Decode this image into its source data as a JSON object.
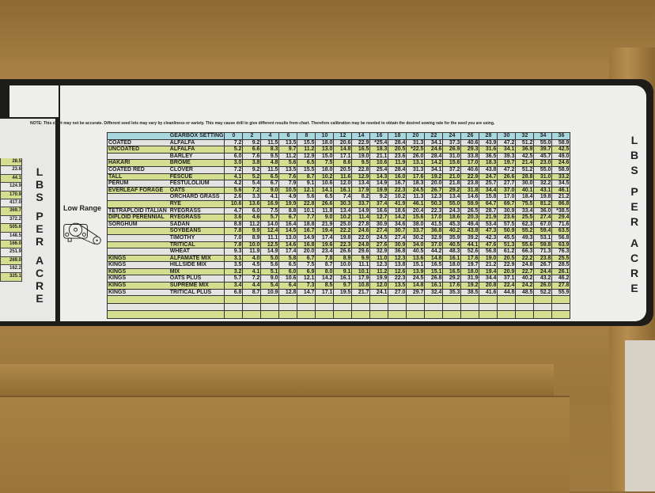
{
  "note": "NOTE: This chart may not be accurate.  Different seed lots may vary by cleanliness or variety.  This may cause drill to give different results from chart. Therefore calibration may be needed to obtain the desired sowing rate for the seed you are using.",
  "units_label": [
    "L",
    "B",
    "S",
    "P",
    "E",
    "R",
    "A",
    "C",
    "R",
    "E"
  ],
  "range_label": "Low Range",
  "icon": "gearbox-belt-diagram",
  "colors": {
    "header": "#a9d7df",
    "stripe": "#d5dd8e",
    "row": "#e3e3e1",
    "housing": "#a57f44"
  },
  "left_chart_values": [
    "28.5",
    "23.6",
    "44.1",
    "124.9",
    "170.9",
    "417.0",
    "369.7",
    "372.2",
    "505.6",
    "148.5",
    "166.0",
    "251.9",
    "269.0",
    "162.2",
    "325.1"
  ],
  "table": {
    "header": "GEARBOX SETTING",
    "settings": [
      "0",
      "2",
      "4",
      "6",
      "8",
      "10",
      "12",
      "14",
      "16",
      "18",
      "20",
      "22",
      "24",
      "26",
      "28",
      "30",
      "32",
      "34",
      "36"
    ],
    "rows": [
      {
        "brand": "COATED",
        "seed": "ALFALFA",
        "values": [
          "7.2",
          "9.2",
          "11.5",
          "13.5",
          "15.5",
          "18.0",
          "20.6",
          "22.9",
          "*25.4",
          "28.4",
          "31.3",
          "34.1",
          "37.3",
          "40.6",
          "43.9",
          "47.2",
          "51.2",
          "55.0",
          "58.9"
        ]
      },
      {
        "brand": "UNCOATED",
        "seed": "ALFALFA",
        "values": [
          "5.2",
          "6.6",
          "8.3",
          "9.7",
          "11.2",
          "13.0",
          "14.8",
          "16.5",
          "18.3",
          "20.5",
          "*22.5",
          "24.6",
          "26.9",
          "29.3",
          "31.6",
          "34.1",
          "36.9",
          "39.7",
          "42.5"
        ]
      },
      {
        "brand": "",
        "seed": "BARLEY",
        "values": [
          "6.0",
          "7.6",
          "9.5",
          "11.2",
          "12.9",
          "15.0",
          "17.1",
          "19.0",
          "21.1",
          "23.6",
          "26.0",
          "28.4",
          "31.0",
          "33.8",
          "36.5",
          "39.3",
          "42.5",
          "45.7",
          "49.0"
        ]
      },
      {
        "brand": "HAKARI",
        "seed": "BROME",
        "values": [
          "3.0",
          "3.8",
          "4.8",
          "5.6",
          "6.5",
          "7.5",
          "8.6",
          "9.5",
          "10.6",
          "11.9",
          "13.1",
          "14.2",
          "15.6",
          "17.0",
          "18.3",
          "19.7",
          "21.4",
          "23.0",
          "24.6"
        ]
      },
      {
        "brand": "COATED RED",
        "seed": "CLOVER",
        "values": [
          "7.2",
          "9.2",
          "11.5",
          "13.5",
          "15.5",
          "18.0",
          "20.5",
          "22.8",
          "25.4",
          "28.4",
          "31.3",
          "34.1",
          "37.2",
          "40.6",
          "43.8",
          "47.2",
          "51.2",
          "55.0",
          "58.9"
        ]
      },
      {
        "brand": "TALL",
        "seed": "FESCUE",
        "values": [
          "4.1",
          "5.2",
          "6.5",
          "7.6",
          "8.7",
          "10.2",
          "11.6",
          "12.9",
          "14.3",
          "16.0",
          "17.6",
          "19.2",
          "21.0",
          "22.9",
          "24.7",
          "26.6",
          "28.8",
          "31.0",
          "33.2"
        ]
      },
      {
        "brand": "PERUM",
        "seed": "FESTULOLIUM",
        "values": [
          "4.2",
          "5.4",
          "6.7",
          "7.9",
          "9.1",
          "10.6",
          "12.0",
          "13.4",
          "14.9",
          "16.7",
          "18.3",
          "20.0",
          "21.8",
          "23.8",
          "25.7",
          "27.7",
          "30.0",
          "32.2",
          "34.5"
        ]
      },
      {
        "brand": "EVERLEAF FORAGE",
        "seed": "OATS",
        "values": [
          "5.6",
          "7.2",
          "9.0",
          "10.5",
          "12.1",
          "14.1",
          "16.1",
          "17.9",
          "19.9",
          "22.3",
          "24.5",
          "26.7",
          "29.2",
          "31.8",
          "34.4",
          "37.0",
          "40.1",
          "43.1",
          "46.1"
        ]
      },
      {
        "brand": "",
        "seed": "ORCHARD GRASS",
        "values": [
          "2.6",
          "3.3",
          "4.1",
          "4.9",
          "5.6",
          "6.5",
          "7.4",
          "8.2",
          "9.2",
          "10.2",
          "11.3",
          "12.3",
          "13.4",
          "14.6",
          "15.8",
          "17.0",
          "18.4",
          "19.8",
          "21.2"
        ]
      },
      {
        "brand": "",
        "seed": "RYE",
        "values": [
          "10.6",
          "13.6",
          "16.9",
          "19.9",
          "22.8",
          "26.6",
          "30.3",
          "33.7",
          "37.4",
          "41.9",
          "46.1",
          "50.3",
          "55.0",
          "59.9",
          "64.7",
          "69.7",
          "75.5",
          "81.2",
          "86.8"
        ]
      },
      {
        "brand": "TETRAPLOID ITALIAN",
        "seed": "RYEGRASS",
        "values": [
          "4.7",
          "6.0",
          "7.5",
          "8.8",
          "10.1",
          "11.8",
          "13.4",
          "14.9",
          "16.6",
          "18.6",
          "20.4",
          "22.3",
          "24.3",
          "26.5",
          "28.7",
          "30.9",
          "33.4",
          "36.0",
          "*38.5"
        ]
      },
      {
        "brand": "DIPLOID PERENNIAL",
        "seed": "RYEGRASS",
        "values": [
          "3.6",
          "4.6",
          "5.7",
          "6.7",
          "7.7",
          "9.0",
          "10.2",
          "11.4",
          "12.7",
          "14.2",
          "15.6",
          "17.0",
          "18.6",
          "20.3",
          "21.9",
          "23.6",
          "25.5",
          "27.4",
          "29.4"
        ]
      },
      {
        "brand": "SORGHUM",
        "seed": "SADAN",
        "values": [
          "8.8",
          "11.2",
          "14.0",
          "16.4",
          "18.8",
          "21.9",
          "25.0",
          "27.8",
          "30.9",
          "34.6",
          "38.0",
          "41.5",
          "45.3",
          "49.4",
          "53.4",
          "57.5",
          "62.3",
          "67.0",
          "71.6"
        ]
      },
      {
        "brand": "",
        "seed": "SOYBEANS",
        "values": [
          "7.8",
          "9.9",
          "12.4",
          "14.5",
          "16.7",
          "19.4",
          "22.2",
          "24.6",
          "27.4",
          "30.7",
          "33.7",
          "36.8",
          "40.2",
          "43.8",
          "47.3",
          "50.9",
          "55.2",
          "59.4",
          "63.5"
        ]
      },
      {
        "brand": "",
        "seed": "TIMOTHY",
        "values": [
          "7.0",
          "8.9",
          "11.1",
          "13.0",
          "14.9",
          "17.4",
          "19.8",
          "22.0",
          "24.5",
          "27.4",
          "30.2",
          "32.9",
          "35.9",
          "39.2",
          "42.3",
          "45.5",
          "49.3",
          "53.1",
          "56.8"
        ]
      },
      {
        "brand": "",
        "seed": "TRITICAL",
        "values": [
          "7.8",
          "10.0",
          "12.5",
          "14.6",
          "16.8",
          "19.6",
          "22.3",
          "24.8",
          "27.6",
          "30.9",
          "34.0",
          "37.0",
          "40.5",
          "44.1",
          "47.6",
          "51.3",
          "55.6",
          "59.8",
          "63.9"
        ]
      },
      {
        "brand": "",
        "seed": "WHEAT",
        "values": [
          "9.3",
          "11.9",
          "14.9",
          "17.4",
          "20.0",
          "23.4",
          "26.6",
          "29.6",
          "32.9",
          "36.8",
          "40.5",
          "44.2",
          "48.3",
          "52.6",
          "56.8",
          "61.2",
          "66.3",
          "71.3",
          "76.3"
        ]
      },
      {
        "brand": "KINGS",
        "seed": "ALFAMATE MIX",
        "values": [
          "3.1",
          "4.0",
          "5.0",
          "5.8",
          "6.7",
          "7.8",
          "8.9",
          "9.9",
          "11.0",
          "12.3",
          "13.6",
          "14.8",
          "16.1",
          "17.6",
          "19.0",
          "20.5",
          "22.2",
          "23.8",
          "25.5"
        ]
      },
      {
        "brand": "KINGS",
        "seed": "HILLSIDE MIX",
        "values": [
          "3.5",
          "4.5",
          "5.6",
          "6.5",
          "7.5",
          "8.7",
          "10.0",
          "11.1",
          "12.3",
          "13.8",
          "15.1",
          "16.5",
          "18.0",
          "19.7",
          "21.2",
          "22.9",
          "24.8",
          "26.7",
          "28.5"
        ]
      },
      {
        "brand": "KINGS",
        "seed": "MIX",
        "values": [
          "3.2",
          "4.1",
          "5.1",
          "6.0",
          "6.9",
          "8.0",
          "9.1",
          "10.1",
          "11.2",
          "12.6",
          "13.9",
          "15.1",
          "16.5",
          "18.0",
          "19.4",
          "20.9",
          "22.7",
          "24.4",
          "26.1"
        ]
      },
      {
        "brand": "KINGS",
        "seed": "OATS PLUS",
        "values": [
          "5.7",
          "7.2",
          "9.0",
          "10.6",
          "12.1",
          "14.2",
          "16.1",
          "17.9",
          "19.9",
          "22.3",
          "24.5",
          "26.8",
          "29.2",
          "31.9",
          "34.4",
          "37.1",
          "40.2",
          "43.2",
          "46.2"
        ]
      },
      {
        "brand": "KINGS",
        "seed": "SUPREME MIX",
        "values": [
          "3.4",
          "4.4",
          "5.4",
          "6.4",
          "7.3",
          "8.5",
          "9.7",
          "10.8",
          "12.0",
          "13.5",
          "14.8",
          "16.1",
          "17.6",
          "19.2",
          "20.8",
          "22.4",
          "24.2",
          "26.0",
          "27.8"
        ]
      },
      {
        "brand": "KINGS",
        "seed": "TRITICAL PLUS",
        "values": [
          "6.8",
          "8.7",
          "10.9",
          "12.8",
          "14.7",
          "17.1",
          "19.5",
          "21.7",
          "24.1",
          "27.0",
          "29.7",
          "32.4",
          "35.3",
          "38.5",
          "41.6",
          "44.8",
          "48.5",
          "52.2",
          "55.9"
        ]
      }
    ]
  }
}
